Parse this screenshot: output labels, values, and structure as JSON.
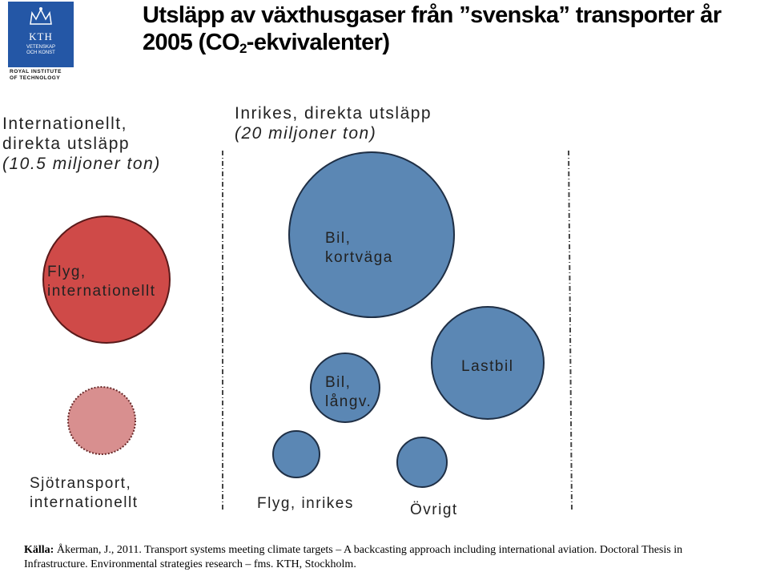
{
  "logo": {
    "name": "KTH",
    "sub_line1": "VETENSKAP",
    "sub_line2": "OCH KONST",
    "caption_line1": "ROYAL INSTITUTE",
    "caption_line2": "OF TECHNOLOGY"
  },
  "title": {
    "line1": "Utsläpp av växthusgaser från ”svenska” transporter år",
    "line2_prefix": "2005 (CO",
    "line2_sub": "2",
    "line2_suffix": "-ekvivalenter)"
  },
  "groups": {
    "international": {
      "line1": "Internationellt,",
      "line2": "direkta utsläpp",
      "line3": "(10.5 miljoner ton)"
    },
    "domestic": {
      "line1": "Inrikes, direkta utsläpp",
      "line2": "(20 miljoner ton)"
    }
  },
  "bubbles": [
    {
      "id": "flyg-internationellt",
      "label_line1": "Flyg,",
      "label_line2": "internationellt",
      "fill": "#cf4a48",
      "stroke": "#5a1a1a"
    },
    {
      "id": "sjotransport-internationellt",
      "label_line1": "Sjötransport,",
      "label_line2": "internationellt",
      "fill": "#d88f8f",
      "stroke": "#6a2a2a"
    },
    {
      "id": "bil-kortvaga",
      "label_line1": "Bil,",
      "label_line2": "kortväga",
      "fill": "#5b87b4",
      "stroke": "#1f2f45"
    },
    {
      "id": "bil-langv",
      "label_line1": "Bil,",
      "label_line2": "långv.",
      "fill": "#5b87b4",
      "stroke": "#1f2f45"
    },
    {
      "id": "lastbil",
      "label_line1": "Lastbil",
      "label_line2": "",
      "fill": "#5b87b4",
      "stroke": "#1f2f45"
    },
    {
      "id": "flyg-inrikes",
      "label_line1": "Flyg, inrikes",
      "label_line2": "",
      "fill": "#5b87b4",
      "stroke": "#1f2f45"
    },
    {
      "id": "ovrigt",
      "label_line1": "Övrigt",
      "label_line2": "",
      "fill": "#5b87b4",
      "stroke": "#1f2f45"
    }
  ],
  "source": {
    "label": "Källa:",
    "text": " Åkerman, J., 2011. Transport systems meeting climate targets – A backcasting approach including international aviation. Doctoral Thesis in Infrastructure. Environmental strategies research – fms. KTH, Stockholm."
  }
}
